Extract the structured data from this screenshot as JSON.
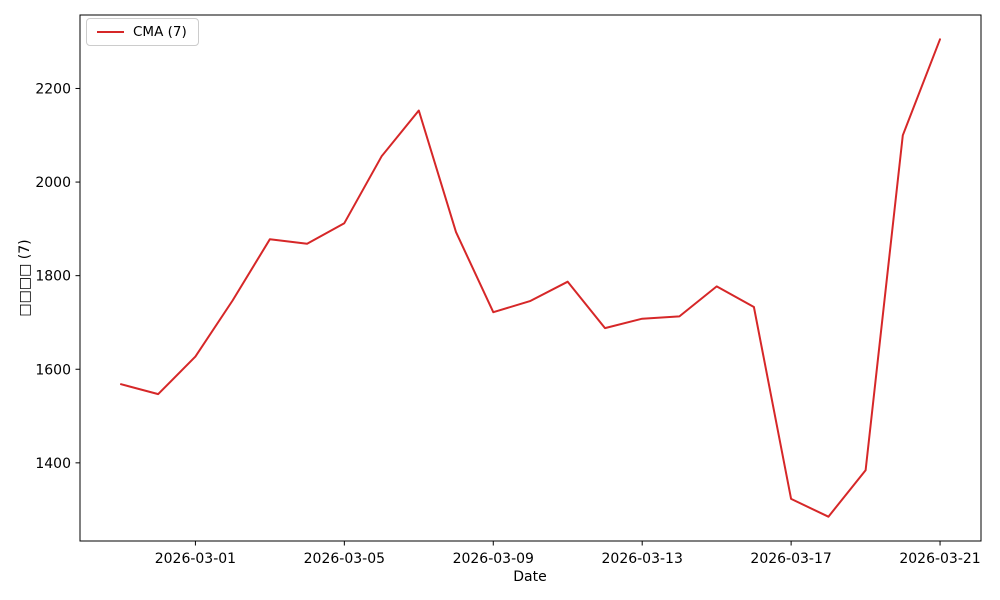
{
  "figure": {
    "background": "#ffffff",
    "spine_color": "#000000",
    "tick_color": "#000000"
  },
  "legend": {
    "label": "CMA (7)",
    "position": "upper left"
  },
  "chart_data": {
    "type": "line",
    "title": "",
    "xlabel": "Date",
    "ylabel": "□□□□ (7)",
    "legend_label": "CMA (7)",
    "line_color": "#d62728",
    "grid": false,
    "x": [
      "2026-02-27",
      "2026-02-28",
      "2026-03-01",
      "2026-03-02",
      "2026-03-03",
      "2026-03-04",
      "2026-03-05",
      "2026-03-06",
      "2026-03-07",
      "2026-03-08",
      "2026-03-09",
      "2026-03-10",
      "2026-03-11",
      "2026-03-12",
      "2026-03-13",
      "2026-03-14",
      "2026-03-15",
      "2026-03-16",
      "2026-03-17",
      "2026-03-18",
      "2026-03-19",
      "2026-03-20",
      "2026-03-21"
    ],
    "y": [
      1568,
      1547,
      1627,
      1747,
      1878,
      1868,
      1912,
      2055,
      2153,
      1893,
      1722,
      1746,
      1787,
      1688,
      1708,
      1713,
      1777,
      1733,
      1323,
      1285,
      1384,
      2100,
      2305
    ],
    "x_ticks": [
      "2026-03-01",
      "2026-03-05",
      "2026-03-09",
      "2026-03-13",
      "2026-03-17",
      "2026-03-21"
    ],
    "y_ticks": [
      1400,
      1600,
      1800,
      2000,
      2200
    ],
    "xlim_day_offsets": [
      -1.1,
      23.1
    ],
    "ylim": [
      1233,
      2357
    ]
  }
}
